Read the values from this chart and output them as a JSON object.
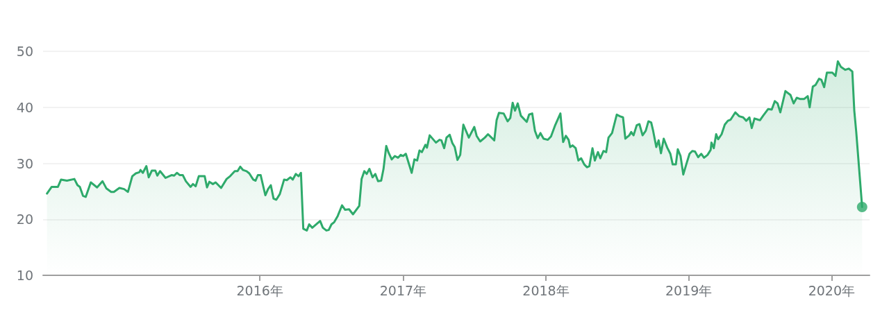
{
  "chart_data": {
    "type": "area",
    "xlim": [
      "2014-06-26",
      "2020-04-07"
    ],
    "ylim": [
      10,
      50
    ],
    "xticks": [
      {
        "value": "2016",
        "label": "2016年"
      },
      {
        "value": "2017",
        "label": "2017年"
      },
      {
        "value": "2018",
        "label": "2018年"
      },
      {
        "value": "2019",
        "label": "2019年"
      },
      {
        "value": "2020",
        "label": "2020年"
      }
    ],
    "yticks": [
      10,
      20,
      30,
      40,
      50
    ],
    "grid": "y",
    "series": [
      {
        "color": "#2eaa6b",
        "x": [
          "2014-07-06",
          "2014-07-18",
          "2014-08-03",
          "2014-08-11",
          "2014-08-26",
          "2014-09-14",
          "2014-09-22",
          "2014-09-28",
          "2014-10-06",
          "2014-10-13",
          "2014-10-26",
          "2014-11-11",
          "2014-11-25",
          "2014-12-05",
          "2014-12-17",
          "2014-12-24",
          "2015-01-07",
          "2015-01-19",
          "2015-01-29",
          "2015-02-09",
          "2015-02-18",
          "2015-02-27",
          "2015-03-02",
          "2015-03-08",
          "2015-03-17",
          "2015-03-23",
          "2015-03-31",
          "2015-04-09",
          "2015-04-14",
          "2015-04-21",
          "2015-05-05",
          "2015-05-21",
          "2015-05-27",
          "2015-06-03",
          "2015-06-10",
          "2015-06-18",
          "2015-06-26",
          "2015-07-08",
          "2015-07-14",
          "2015-07-21",
          "2015-07-29",
          "2015-08-13",
          "2015-08-19",
          "2015-08-25",
          "2015-09-03",
          "2015-09-10",
          "2015-09-24",
          "2015-10-08",
          "2015-10-17",
          "2015-10-29",
          "2015-11-05",
          "2015-11-12",
          "2015-11-19",
          "2015-11-28",
          "2015-12-05",
          "2015-12-15",
          "2015-12-21",
          "2015-12-27",
          "2016-01-03",
          "2016-01-15",
          "2016-01-22",
          "2016-01-29",
          "2016-02-05",
          "2016-02-12",
          "2016-02-21",
          "2016-03-03",
          "2016-03-10",
          "2016-03-19",
          "2016-03-25",
          "2016-04-02",
          "2016-04-09",
          "2016-04-15",
          "2016-04-21",
          "2016-04-30",
          "2016-05-06",
          "2016-05-14",
          "2016-06-03",
          "2016-06-10",
          "2016-06-19",
          "2016-06-25",
          "2016-07-02",
          "2016-07-09",
          "2016-07-18",
          "2016-07-29",
          "2016-08-06",
          "2016-08-16",
          "2016-08-26",
          "2016-09-11",
          "2016-09-17",
          "2016-09-24",
          "2016-09-30",
          "2016-10-07",
          "2016-10-15",
          "2016-10-22",
          "2016-10-29",
          "2016-11-06",
          "2016-11-12",
          "2016-11-19",
          "2016-11-25",
          "2016-12-03",
          "2016-12-11",
          "2016-12-19",
          "2016-12-26",
          "2017-01-01",
          "2017-01-08",
          "2017-01-23",
          "2017-01-30",
          "2017-02-06",
          "2017-02-12",
          "2017-02-18",
          "2017-02-27",
          "2017-03-03",
          "2017-03-10",
          "2017-03-26",
          "2017-04-04",
          "2017-04-09",
          "2017-04-16",
          "2017-04-22",
          "2017-04-30",
          "2017-05-07",
          "2017-05-13",
          "2017-05-20",
          "2017-05-27",
          "2017-06-04",
          "2017-06-18",
          "2017-07-02",
          "2017-07-08",
          "2017-07-17",
          "2017-07-29",
          "2017-08-06",
          "2017-08-22",
          "2017-08-28",
          "2017-09-03",
          "2017-09-15",
          "2017-09-25",
          "2017-10-02",
          "2017-10-08",
          "2017-10-14",
          "2017-10-21",
          "2017-10-29",
          "2017-11-13",
          "2017-11-19",
          "2017-11-27",
          "2017-12-04",
          "2017-12-11",
          "2017-12-18",
          "2017-12-26",
          "2018-01-06",
          "2018-01-14",
          "2018-01-24",
          "2018-02-07",
          "2018-02-14",
          "2018-02-21",
          "2018-02-28",
          "2018-03-04",
          "2018-03-10",
          "2018-03-18",
          "2018-03-25",
          "2018-04-01",
          "2018-04-09",
          "2018-04-16",
          "2018-04-22",
          "2018-04-30",
          "2018-05-06",
          "2018-05-14",
          "2018-05-20",
          "2018-05-28",
          "2018-06-04",
          "2018-06-10",
          "2018-06-19",
          "2018-07-01",
          "2018-07-09",
          "2018-07-17",
          "2018-07-23",
          "2018-08-02",
          "2018-08-07",
          "2018-08-13",
          "2018-08-21",
          "2018-08-28",
          "2018-09-05",
          "2018-09-13",
          "2018-09-20",
          "2018-09-27",
          "2018-10-02",
          "2018-10-10",
          "2018-10-16",
          "2018-10-22",
          "2018-10-29",
          "2018-11-07",
          "2018-11-15",
          "2018-11-21",
          "2018-11-29",
          "2018-12-04",
          "2018-12-11",
          "2018-12-18",
          "2018-12-26",
          "2019-01-03",
          "2019-01-10",
          "2019-01-17",
          "2019-01-25",
          "2019-02-02",
          "2019-02-09",
          "2019-02-18",
          "2019-02-26",
          "2019-02-28",
          "2019-03-06",
          "2019-03-12",
          "2019-03-17",
          "2019-03-26",
          "2019-04-03",
          "2019-04-11",
          "2019-04-18",
          "2019-04-30",
          "2019-05-10",
          "2019-05-20",
          "2019-05-28",
          "2019-06-05",
          "2019-06-11",
          "2019-06-18",
          "2019-06-27",
          "2019-07-02",
          "2019-07-10",
          "2019-07-23",
          "2019-08-01",
          "2019-08-09",
          "2019-08-16",
          "2019-08-23",
          "2019-09-05",
          "2019-09-18",
          "2019-09-26",
          "2019-10-04",
          "2019-10-12",
          "2019-10-23",
          "2019-11-01",
          "2019-11-06",
          "2019-11-14",
          "2019-11-21",
          "2019-11-30",
          "2019-12-06",
          "2019-12-13",
          "2019-12-20",
          "2020-01-03",
          "2020-01-11",
          "2020-01-17",
          "2020-01-25",
          "2020-02-05",
          "2020-02-14",
          "2020-02-23",
          "2020-02-28",
          "2020-03-04",
          "2020-03-19"
        ],
        "values": [
          24.6,
          25.8,
          25.8,
          27.1,
          26.9,
          27.2,
          26.1,
          25.8,
          24.2,
          24.0,
          26.6,
          25.7,
          26.8,
          25.5,
          24.9,
          24.9,
          25.6,
          25.4,
          24.9,
          27.7,
          28.2,
          28.4,
          28.8,
          28.3,
          29.5,
          27.5,
          28.7,
          28.7,
          27.8,
          28.6,
          27.4,
          27.9,
          27.8,
          28.3,
          27.9,
          27.9,
          26.8,
          25.8,
          26.3,
          25.9,
          27.7,
          27.7,
          25.7,
          26.7,
          26.3,
          26.6,
          25.6,
          27.2,
          27.7,
          28.6,
          28.6,
          29.4,
          28.8,
          28.6,
          28.2,
          27.1,
          26.9,
          27.9,
          27.9,
          24.3,
          25.4,
          26.1,
          23.7,
          23.5,
          24.5,
          27.1,
          27.0,
          27.5,
          27.1,
          28.1,
          27.7,
          28.3,
          18.3,
          18.0,
          19.1,
          18.5,
          19.7,
          18.5,
          18.0,
          18.1,
          19.1,
          19.5,
          20.6,
          22.5,
          21.7,
          21.8,
          20.9,
          22.4,
          27.2,
          28.6,
          28.1,
          29.0,
          27.5,
          28.1,
          26.8,
          26.9,
          29.0,
          33.1,
          31.9,
          30.7,
          31.3,
          31.0,
          31.5,
          31.3,
          31.7,
          28.3,
          30.7,
          30.5,
          32.3,
          32.0,
          33.3,
          32.8,
          35.0,
          33.7,
          34.2,
          34.1,
          32.7,
          34.6,
          35.1,
          33.6,
          32.9,
          30.6,
          31.5,
          36.9,
          34.6,
          36.5,
          34.9,
          33.9,
          34.6,
          35.2,
          34.1,
          37.7,
          39.0,
          38.9,
          37.5,
          38.1,
          40.8,
          39.4,
          40.7,
          38.5,
          37.4,
          38.7,
          38.9,
          35.8,
          34.5,
          35.4,
          34.4,
          34.2,
          34.8,
          36.7,
          38.9,
          33.8,
          34.9,
          34.2,
          32.9,
          33.2,
          32.7,
          30.5,
          30.9,
          29.8,
          29.3,
          29.5,
          32.7,
          30.5,
          32.0,
          30.9,
          32.2,
          32.0,
          34.6,
          35.4,
          38.7,
          38.4,
          38.2,
          34.4,
          35.0,
          35.6,
          35.0,
          36.8,
          37.0,
          35.0,
          35.8,
          37.5,
          37.3,
          35.8,
          32.9,
          34.1,
          31.8,
          34.4,
          32.8,
          31.7,
          29.8,
          29.8,
          32.5,
          31.3,
          28.0,
          29.9,
          31.7,
          32.2,
          32.1,
          31.1,
          31.7,
          31.0,
          31.5,
          32.4,
          33.7,
          32.7,
          35.2,
          34.3,
          35.2,
          36.9,
          37.6,
          37.8,
          39.1,
          38.4,
          38.2,
          37.6,
          38.2,
          36.3,
          38.0,
          37.8,
          37.7,
          38.5,
          39.7,
          39.6,
          41.1,
          40.7,
          39.1,
          42.9,
          42.2,
          40.7,
          41.7,
          41.5,
          41.5,
          42.0,
          40.0,
          43.7,
          44.0,
          45.1,
          44.9,
          43.6,
          46.2,
          46.2,
          45.6,
          48.2,
          47.2,
          46.7,
          46.9,
          46.4,
          39.4,
          35.6,
          22.2
        ]
      },
      {
        "type": "scatter",
        "color": "#2eaa6b",
        "marker": "circle",
        "x": [
          "2020-03-19"
        ],
        "values": [
          22.2
        ]
      }
    ]
  }
}
